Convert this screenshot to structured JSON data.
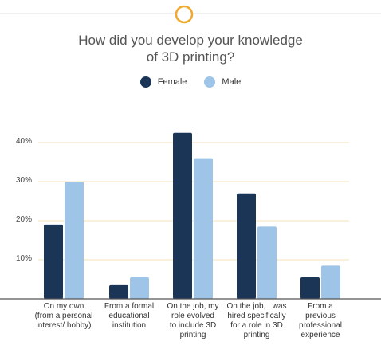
{
  "chart_data": {
    "type": "bar",
    "title": "How did you develop your knowledge of 3D printing?",
    "categories": [
      "On my own (from a personal interest/ hobby)",
      "From a formal educational institution",
      "On the job, my role evolved to include 3D printing",
      "On the job, I was hired specifically for a role in 3D printing",
      "From a previous professional experience"
    ],
    "category_lines": [
      [
        "On my own",
        "(from a personal",
        "interest/ hobby)"
      ],
      [
        "From a formal",
        "educational",
        "institution"
      ],
      [
        "On the job, my",
        "role evolved",
        "to include 3D",
        "printing"
      ],
      [
        "On the job, I was",
        "hired specifically",
        "for a role in 3D",
        "printing"
      ],
      [
        "From a",
        "previous",
        "professional",
        "experience"
      ]
    ],
    "series": [
      {
        "name": "Female",
        "color": "#1b3557",
        "values": [
          19,
          3.5,
          42.5,
          27,
          5.5
        ]
      },
      {
        "name": "Male",
        "color": "#9ec4e8",
        "values": [
          30,
          5.5,
          36,
          18.5,
          8.5
        ]
      }
    ],
    "yticks": [
      "10%",
      "20%",
      "30%",
      "40%"
    ],
    "ytick_values": [
      10,
      20,
      30,
      40
    ],
    "ylim": [
      0,
      45
    ],
    "legend_position": "top-center",
    "grid": true,
    "grid_color": "#f3e3b8",
    "accent_color": "#f0a830"
  }
}
